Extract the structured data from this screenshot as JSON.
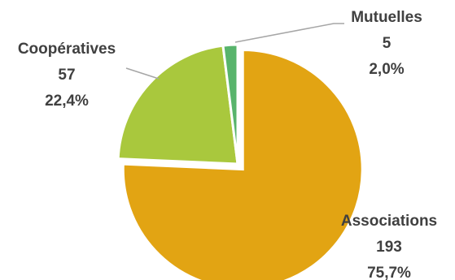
{
  "chart_data": {
    "type": "pie",
    "slices": [
      {
        "label": "Associations",
        "value": 193,
        "percent": "75,7%",
        "color": "#E2A413"
      },
      {
        "label": "Coopératives",
        "value": 57,
        "percent": "22,4%",
        "color": "#A9C83D"
      },
      {
        "label": "Mutuelles",
        "value": 5,
        "percent": "2,0%",
        "color": "#58B46C"
      }
    ],
    "start_angle_deg": 0,
    "direction": "clockwise",
    "exploded_slice": "Associations",
    "data_labels": [
      "category",
      "value",
      "percent"
    ],
    "legend": "none"
  }
}
